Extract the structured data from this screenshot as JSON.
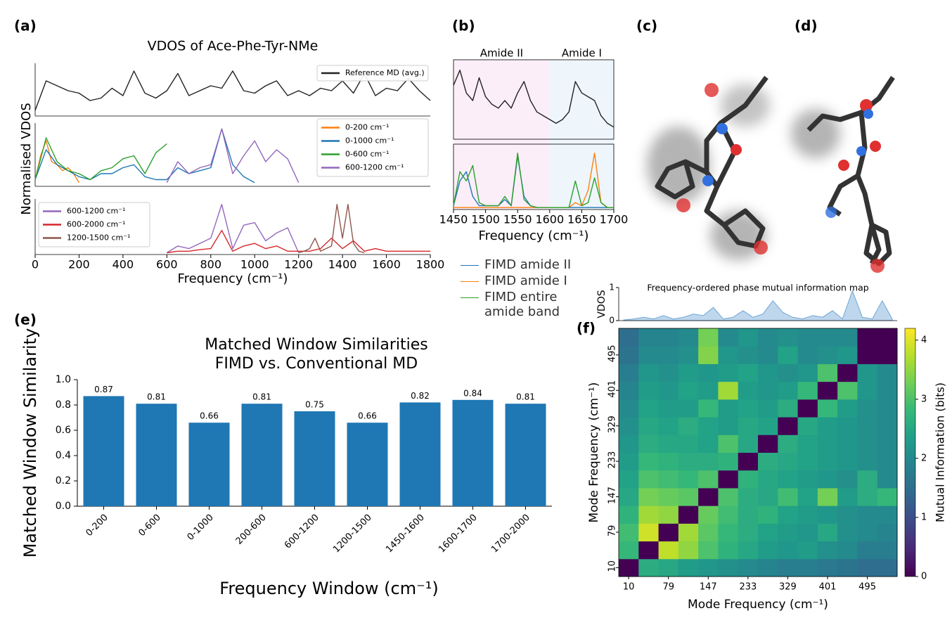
{
  "chart_data": [
    {
      "type": "line",
      "panel_label": "(a)",
      "title": "VDOS of Ace-Phe-Tyr-NMe",
      "ylabel": "Normalised VDOS",
      "xlabel": "Frequency (cm⁻¹)",
      "xlim": [
        0,
        1800
      ],
      "xticks": [
        0,
        200,
        400,
        600,
        800,
        1000,
        1200,
        1400,
        1600,
        1800
      ],
      "ylim": [
        0,
        1
      ],
      "panels": [
        {
          "legend": "upper right",
          "series": [
            {
              "name": "Reference MD (avg.)",
              "color": "#222222",
              "x": [
                0,
                50,
                100,
                150,
                200,
                250,
                300,
                350,
                400,
                450,
                500,
                550,
                600,
                650,
                700,
                750,
                800,
                850,
                900,
                950,
                1000,
                1050,
                1100,
                1150,
                1200,
                1250,
                1300,
                1350,
                1400,
                1450,
                1500,
                1550,
                1600,
                1650,
                1700,
                1750,
                1800
              ],
              "values": [
                0.1,
                0.7,
                0.6,
                0.5,
                0.45,
                0.3,
                0.35,
                0.55,
                0.4,
                0.9,
                0.45,
                0.35,
                0.5,
                0.85,
                0.4,
                0.5,
                0.6,
                0.55,
                0.9,
                0.5,
                0.45,
                0.6,
                0.7,
                0.4,
                0.5,
                0.4,
                0.55,
                0.5,
                0.7,
                0.45,
                0.85,
                0.4,
                0.55,
                0.5,
                0.75,
                0.5,
                0.3
              ]
            }
          ]
        },
        {
          "legend": "right",
          "series": [
            {
              "name": "0-200 cm⁻¹",
              "color": "#ff7f0e",
              "x": [
                0,
                25,
                50,
                75,
                100,
                125,
                150,
                175,
                200
              ],
              "values": [
                0.1,
                0.5,
                0.75,
                0.4,
                0.35,
                0.25,
                0.3,
                0.2,
                0.05
              ]
            },
            {
              "name": "0-1000 cm⁻¹",
              "color": "#1f77b4",
              "x": [
                0,
                50,
                100,
                150,
                200,
                250,
                300,
                350,
                400,
                450,
                500,
                550,
                600,
                650,
                700,
                750,
                800,
                850,
                900,
                950,
                1000
              ],
              "values": [
                0.1,
                0.6,
                0.35,
                0.25,
                0.15,
                0.1,
                0.2,
                0.2,
                0.3,
                0.35,
                0.15,
                0.1,
                0.1,
                0.3,
                0.2,
                0.25,
                0.3,
                0.95,
                0.35,
                0.15,
                0.05
              ]
            },
            {
              "name": "0-600 cm⁻¹",
              "color": "#2ca02c",
              "x": [
                0,
                50,
                100,
                150,
                200,
                250,
                300,
                350,
                400,
                450,
                500,
                550,
                600
              ],
              "values": [
                0.1,
                0.8,
                0.4,
                0.25,
                0.2,
                0.1,
                0.25,
                0.3,
                0.45,
                0.5,
                0.2,
                0.55,
                0.7
              ]
            },
            {
              "name": "600-1200 cm⁻¹",
              "color": "#9467bd",
              "x": [
                600,
                650,
                700,
                750,
                800,
                850,
                900,
                950,
                1000,
                1050,
                1100,
                1150,
                1200
              ],
              "values": [
                0.05,
                0.4,
                0.2,
                0.3,
                0.35,
                0.95,
                0.2,
                0.5,
                0.75,
                0.4,
                0.6,
                0.45,
                0.05
              ]
            }
          ]
        },
        {
          "legend": "upper left",
          "series": [
            {
              "name": "600-1200 cm⁻¹",
              "color": "#9467bd",
              "x": [
                600,
                650,
                700,
                750,
                800,
                850,
                900,
                950,
                1000,
                1050,
                1100,
                1150,
                1200
              ],
              "values": [
                0.02,
                0.15,
                0.1,
                0.2,
                0.3,
                0.95,
                0.1,
                0.55,
                0.6,
                0.25,
                0.4,
                0.5,
                0.02
              ]
            },
            {
              "name": "600-2000 cm⁻¹",
              "color": "#d62728",
              "x": [
                600,
                650,
                700,
                750,
                800,
                850,
                900,
                950,
                1000,
                1050,
                1100,
                1150,
                1200,
                1250,
                1300,
                1350,
                1400,
                1450,
                1500,
                1550,
                1600,
                1650,
                1700,
                1750,
                1800
              ],
              "values": [
                0.02,
                0.05,
                0.05,
                0.08,
                0.1,
                0.45,
                0.05,
                0.15,
                0.2,
                0.1,
                0.15,
                0.05,
                0.05,
                0.05,
                0.1,
                0.3,
                0.1,
                0.25,
                0.05,
                0.1,
                0.05,
                0.05,
                0.05,
                0.05,
                0.05
              ]
            },
            {
              "name": "1200-1500 cm⁻¹",
              "color": "#8c564b",
              "x": [
                1200,
                1225,
                1250,
                1275,
                1300,
                1325,
                1350,
                1375,
                1400,
                1425,
                1450,
                1475,
                1500
              ],
              "values": [
                0.02,
                0.05,
                0.1,
                0.3,
                0.05,
                0.1,
                0.15,
                0.95,
                0.3,
                0.95,
                0.2,
                0.05,
                0.02
              ]
            }
          ]
        }
      ]
    },
    {
      "type": "line",
      "panel_label": "(b)",
      "xlabel": "Frequency (cm⁻¹)",
      "xlim": [
        1450,
        1700
      ],
      "xticks": [
        1450,
        1500,
        1550,
        1600,
        1650,
        1700
      ],
      "ylim": [
        0,
        1
      ],
      "spans": [
        {
          "label": "Amide II",
          "range": [
            1450,
            1600
          ],
          "color": "#fbeef8"
        },
        {
          "label": "Amide I",
          "range": [
            1600,
            1700
          ],
          "color": "#eef6fc"
        }
      ],
      "panels": [
        {
          "series": [
            {
              "color": "#222222",
              "x": [
                1450,
                1460,
                1470,
                1480,
                1490,
                1500,
                1510,
                1520,
                1530,
                1540,
                1550,
                1560,
                1570,
                1580,
                1590,
                1600,
                1610,
                1620,
                1630,
                1640,
                1650,
                1660,
                1670,
                1680,
                1690,
                1700
              ],
              "values": [
                0.7,
                0.9,
                0.6,
                0.5,
                0.8,
                0.55,
                0.45,
                0.4,
                0.5,
                0.4,
                0.6,
                0.75,
                0.5,
                0.35,
                0.3,
                0.25,
                0.2,
                0.25,
                0.35,
                0.75,
                0.6,
                0.55,
                0.5,
                0.3,
                0.2,
                0.15
              ]
            }
          ]
        },
        {
          "legend": "outside",
          "series": [
            {
              "name": "FIMD amide II",
              "color": "#1f77b4",
              "x": [
                1450,
                1460,
                1470,
                1480,
                1490,
                1500,
                1510,
                1520,
                1530,
                1540,
                1550,
                1560,
                1570,
                1580,
                1590,
                1600,
                1610,
                1620,
                1630,
                1640,
                1650,
                1660,
                1670,
                1680,
                1690,
                1700
              ],
              "values": [
                0.05,
                0.45,
                0.6,
                0.2,
                0.05,
                0.05,
                0.05,
                0.05,
                0.15,
                0.05,
                0.85,
                0.2,
                0.05,
                0.02,
                0.02,
                0.02,
                0.02,
                0.02,
                0.02,
                0.02,
                0.02,
                0.02,
                0.02,
                0.02,
                0.02,
                0.02
              ]
            },
            {
              "name": "FIMD amide I",
              "color": "#ff7f0e",
              "x": [
                1450,
                1460,
                1470,
                1480,
                1490,
                1500,
                1510,
                1520,
                1530,
                1540,
                1550,
                1560,
                1570,
                1580,
                1590,
                1600,
                1610,
                1620,
                1630,
                1640,
                1650,
                1660,
                1670,
                1680,
                1690,
                1700
              ],
              "values": [
                0.02,
                0.02,
                0.02,
                0.02,
                0.02,
                0.02,
                0.02,
                0.02,
                0.02,
                0.02,
                0.02,
                0.02,
                0.02,
                0.02,
                0.02,
                0.02,
                0.02,
                0.02,
                0.02,
                0.1,
                0.05,
                0.3,
                0.9,
                0.1,
                0.02,
                0.02
              ]
            },
            {
              "name": "FIMD entire amide band",
              "color": "#2ca02c",
              "x": [
                1450,
                1460,
                1470,
                1480,
                1490,
                1500,
                1510,
                1520,
                1530,
                1540,
                1550,
                1560,
                1570,
                1580,
                1590,
                1600,
                1610,
                1620,
                1630,
                1640,
                1650,
                1660,
                1670,
                1680,
                1690,
                1700
              ],
              "values": [
                0.05,
                0.6,
                0.45,
                0.7,
                0.1,
                0.05,
                0.05,
                0.05,
                0.2,
                0.05,
                0.9,
                0.15,
                0.05,
                0.02,
                0.02,
                0.02,
                0.02,
                0.02,
                0.02,
                0.45,
                0.05,
                0.1,
                0.5,
                0.1,
                0.02,
                0.02
              ]
            }
          ]
        }
      ]
    },
    {
      "type": "image",
      "panel_label": "(c)"
    },
    {
      "type": "image",
      "panel_label": "(d)"
    },
    {
      "type": "bar",
      "panel_label": "(e)",
      "title": [
        "Matched Window Similarities",
        "FIMD vs. Conventional MD"
      ],
      "ylabel": "Matched Window Similarity",
      "xlabel": "Frequency Window (cm⁻¹)",
      "categories": [
        "0-200",
        "0-600",
        "0-1000",
        "200-600",
        "600-1200",
        "1200-1500",
        "1450-1600",
        "1600-1700",
        "1700-2000"
      ],
      "values": [
        0.87,
        0.81,
        0.66,
        0.81,
        0.75,
        0.66,
        0.82,
        0.84,
        0.81
      ],
      "color": "#1f77b4",
      "ylim": [
        0,
        1
      ],
      "yticks": [
        {
          "value": 0,
          "label": "0.0"
        },
        0.2,
        0.4,
        0.6,
        0.8,
        {
          "value": 1,
          "label": "1.0"
        }
      ]
    },
    {
      "type": "heatmap",
      "panel_label": "(f)",
      "title": "Frequency-ordered phase mutual information map",
      "xlabel": "Mode Frequency (cm⁻¹)",
      "ylabel": "Mode Frequency (cm⁻¹)",
      "categories": [
        10,
        null,
        79,
        null,
        147,
        null,
        233,
        null,
        329,
        null,
        401,
        null,
        495,
        null
      ],
      "colormap": "viridis",
      "clim": [
        0,
        4.2
      ],
      "cticks": [
        0,
        1,
        2,
        3,
        4
      ],
      "colorbar_label": "Mutual Information (bits)",
      "vdos": {
        "ylabel": "VDOS",
        "ylim": [
          0,
          1
        ],
        "yticks": [
          0,
          1
        ],
        "color": "#6ea6d6",
        "values": [
          0.02,
          0.05,
          0.1,
          0.05,
          0.15,
          0.05,
          0.1,
          0.2,
          0.15,
          0.4,
          0.05,
          0.1,
          0.3,
          0.1,
          0.2,
          0.6,
          0.25,
          0.1,
          0.05,
          0.15,
          0.1,
          0.3,
          0.05,
          0.9,
          0.1,
          0.05,
          0.6,
          0.05
        ]
      },
      "matrix": [
        [
          0,
          2.6,
          2.5,
          2.3,
          2.2,
          2.1,
          2.0,
          1.9,
          1.8,
          1.8,
          1.7,
          1.6,
          1.5,
          1.5
        ],
        [
          2.8,
          0,
          3.8,
          3.5,
          3.0,
          2.7,
          2.5,
          2.3,
          2.2,
          2.3,
          2.1,
          2.0,
          1.8,
          1.8
        ],
        [
          2.9,
          3.9,
          0,
          3.6,
          3.1,
          2.8,
          2.6,
          2.4,
          2.3,
          2.2,
          2.5,
          2.1,
          2.0,
          1.9
        ],
        [
          2.7,
          3.6,
          3.5,
          0,
          3.2,
          2.9,
          2.6,
          2.7,
          2.4,
          2.3,
          2.2,
          2.1,
          2.0,
          2.0
        ],
        [
          2.5,
          3.3,
          3.2,
          3.1,
          0,
          3.0,
          2.6,
          2.5,
          2.9,
          2.4,
          3.3,
          2.3,
          2.6,
          2.8
        ],
        [
          2.4,
          3.0,
          2.9,
          2.8,
          3.0,
          0,
          2.7,
          2.5,
          2.4,
          2.3,
          2.2,
          2.1,
          2.6,
          2.0
        ],
        [
          2.3,
          2.8,
          2.7,
          2.6,
          2.6,
          2.7,
          0,
          2.6,
          2.5,
          2.4,
          2.3,
          2.2,
          2.1,
          2.0
        ],
        [
          2.2,
          2.6,
          2.5,
          2.5,
          2.4,
          3.0,
          2.5,
          0,
          2.6,
          2.4,
          2.3,
          2.2,
          2.1,
          2.0
        ],
        [
          2.1,
          2.5,
          2.4,
          2.6,
          2.4,
          2.3,
          2.5,
          2.4,
          0,
          2.5,
          2.3,
          2.2,
          2.1,
          2.0
        ],
        [
          2.0,
          2.4,
          2.3,
          2.3,
          2.8,
          2.3,
          2.4,
          2.3,
          2.6,
          0,
          2.8,
          2.3,
          2.1,
          2.0
        ],
        [
          1.9,
          2.3,
          2.2,
          2.4,
          2.3,
          3.6,
          2.3,
          2.2,
          2.3,
          2.8,
          0,
          3.0,
          2.2,
          2.0
        ],
        [
          1.8,
          2.2,
          2.1,
          2.3,
          2.2,
          2.3,
          2.4,
          2.2,
          2.1,
          2.2,
          3.0,
          0,
          2.2,
          2.0
        ],
        [
          1.6,
          2.0,
          2.0,
          2.1,
          3.4,
          2.2,
          2.1,
          2.0,
          2.4,
          2.0,
          2.1,
          2.2,
          0,
          0
        ],
        [
          1.5,
          1.9,
          1.9,
          2.0,
          3.3,
          2.0,
          2.2,
          2.0,
          2.1,
          2.0,
          2.0,
          2.0,
          0,
          0
        ]
      ]
    }
  ]
}
